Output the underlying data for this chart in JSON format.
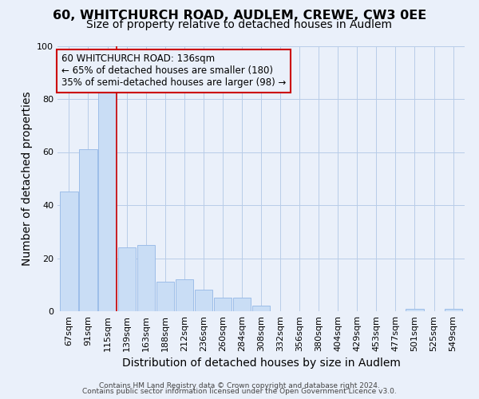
{
  "title": "60, WHITCHURCH ROAD, AUDLEM, CREWE, CW3 0EE",
  "subtitle": "Size of property relative to detached houses in Audlem",
  "xlabel": "Distribution of detached houses by size in Audlem",
  "ylabel": "Number of detached properties",
  "bar_labels": [
    "67sqm",
    "91sqm",
    "115sqm",
    "139sqm",
    "163sqm",
    "188sqm",
    "212sqm",
    "236sqm",
    "260sqm",
    "284sqm",
    "308sqm",
    "332sqm",
    "356sqm",
    "380sqm",
    "404sqm",
    "429sqm",
    "453sqm",
    "477sqm",
    "501sqm",
    "525sqm",
    "549sqm"
  ],
  "bar_values": [
    45,
    61,
    84,
    24,
    25,
    11,
    12,
    8,
    5,
    5,
    2,
    0,
    0,
    0,
    0,
    0,
    0,
    0,
    1,
    0,
    1
  ],
  "bar_color": "#c9ddf5",
  "bar_edge_color": "#9dbde8",
  "vline_color": "#cc0000",
  "annotation_title": "60 WHITCHURCH ROAD: 136sqm",
  "annotation_line1": "← 65% of detached houses are smaller (180)",
  "annotation_line2": "35% of semi-detached houses are larger (98) →",
  "annotation_box_edge": "#cc0000",
  "ylim": [
    0,
    100
  ],
  "yticks": [
    0,
    20,
    40,
    60,
    80,
    100
  ],
  "background_color": "#eaf0fa",
  "grid_color": "#b8cce8",
  "footer_line1": "Contains HM Land Registry data © Crown copyright and database right 2024.",
  "footer_line2": "Contains public sector information licensed under the Open Government Licence v3.0.",
  "title_fontsize": 11.5,
  "subtitle_fontsize": 10,
  "axis_label_fontsize": 10,
  "tick_fontsize": 8,
  "annotation_fontsize": 8.5,
  "footer_fontsize": 6.5
}
